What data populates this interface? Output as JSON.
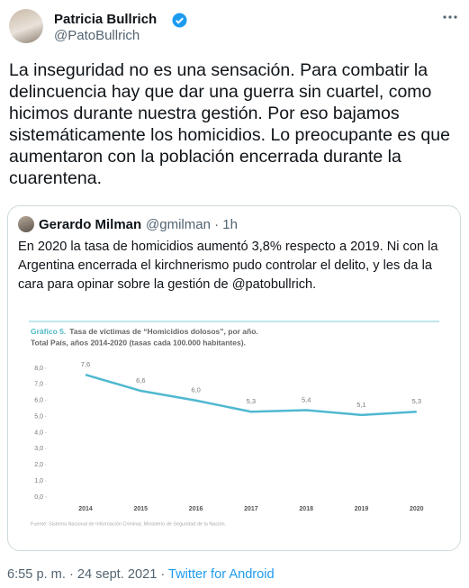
{
  "tweet": {
    "name": "Patricia Bullrich",
    "handle": "@PatoBullrich",
    "text": "La inseguridad no es una sensación. Para combatir la delincuencia hay que dar una guerra sin cuartel, como hicimos durante nuestra gestión. Por eso bajamos sistemáticamente los homicidios. Lo preocupante es que aumentaron con la población encerrada durante la cuarentena.",
    "timestamp": "6:55 p. m. · 24 sept. 2021 ·",
    "client": "Twitter for Android"
  },
  "quote": {
    "name": "Gerardo Milman",
    "handle": "@gmilman · 1h",
    "text": "En 2020 la tasa de homicidios aumentó 3,8% respecto a 2019. Ni con la Argentina encerrada el kirchnerismo pudo controlar el delito, y les da la cara para opinar sobre la gestión de @patobullrich."
  },
  "chart_data": {
    "type": "line",
    "title_prefix": "Gráfico 5.",
    "title": "Tasa de víctimas de “Homicidios dolosos”, por año.",
    "subtitle": "Total País, años 2014-2020 (tasas cada 100.000 habitantes).",
    "source": "Fuente: Sistema Nacional de Información Criminal, Ministerio de Seguridad de la Nación.",
    "categories": [
      "2014",
      "2015",
      "2016",
      "2017",
      "2018",
      "2019",
      "2020"
    ],
    "series": [
      {
        "name": "Tasa de víctimas",
        "color": "#4fb8d0",
        "values": [
          7.6,
          6.6,
          6.0,
          5.3,
          5.4,
          5.1,
          5.3
        ],
        "value_labels": [
          "7,6",
          "6,6",
          "6,0",
          "5,3",
          "5,4",
          "5,1",
          "5,3"
        ]
      }
    ],
    "ylim": [
      0,
      8
    ],
    "yticks": [
      {
        "value": 0,
        "label": "0,0"
      },
      {
        "value": 1,
        "label": "1,0"
      },
      {
        "value": 2,
        "label": "2,0"
      },
      {
        "value": 3,
        "label": "3,0"
      },
      {
        "value": 4,
        "label": "4,0"
      },
      {
        "value": 5,
        "label": "5,0"
      },
      {
        "value": 6,
        "label": "6,0"
      },
      {
        "value": 7,
        "label": "7,0"
      },
      {
        "value": 8,
        "label": "8,0"
      }
    ],
    "grid": false
  }
}
